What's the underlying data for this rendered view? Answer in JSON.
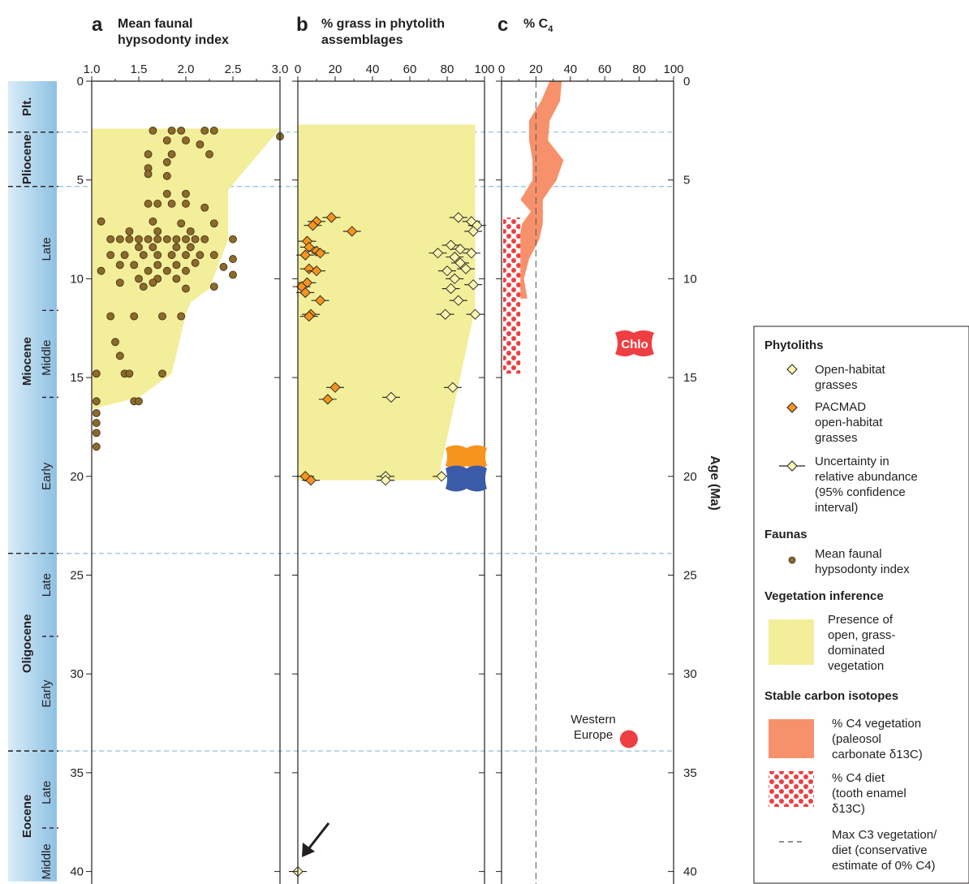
{
  "panels": [
    {
      "letter": "a",
      "title_line1": "Mean faunal",
      "title_line2": "hypsodonty index",
      "xticks": [
        "1.0",
        "1.5",
        "2.0",
        "2.5",
        "3.0"
      ],
      "xmin": 1.0,
      "xmax": 3.0
    },
    {
      "letter": "b",
      "title_line1": "% grass in phytolith",
      "title_line2": "assemblages",
      "xticks": [
        "0",
        "20",
        "40",
        "60",
        "80",
        "100"
      ],
      "xmin": 0,
      "xmax": 100
    },
    {
      "letter": "c",
      "title_line1": "% C",
      "title_sub": "4",
      "xticks": [
        "0",
        "20",
        "40",
        "60",
        "80",
        "100"
      ],
      "xmin": 0,
      "xmax": 100
    }
  ],
  "y_axis": {
    "label": "Age (Ma)",
    "ticks": [
      "0",
      "5",
      "10",
      "15",
      "20",
      "25",
      "30",
      "35",
      "40"
    ],
    "min": 0,
    "max": 40.5
  },
  "epochs": [
    {
      "name": "Plt.",
      "from": 0,
      "to": 2.58
    },
    {
      "name": "Pliocene",
      "from": 2.58,
      "to": 5.33
    },
    {
      "name": "Miocene",
      "from": 5.33,
      "to": 23.03
    },
    {
      "name": "Oligocene",
      "from": 23.03,
      "to": 33.9
    },
    {
      "name": "Eocene",
      "from": 33.9,
      "to": 40.5
    }
  ],
  "subepochs": [
    {
      "name": "Late",
      "at": 8.5
    },
    {
      "name": "Middle",
      "at": 14.0
    },
    {
      "name": "Early",
      "at": 20.0
    },
    {
      "name": "Late",
      "at": 25.5
    },
    {
      "name": "Early",
      "at": 31.0
    },
    {
      "name": "Late",
      "at": 36.0
    },
    {
      "name": "Middle",
      "at": 39.5
    }
  ],
  "annotations": {
    "chlo": "Chlo",
    "western_europe_line1": "Western",
    "western_europe_line2": "Europe"
  },
  "legend": {
    "phytoliths_title": "Phytoliths",
    "open_habitat": [
      "Open-habitat",
      "grasses"
    ],
    "pacmad": [
      "PACMAD",
      "open-habitat",
      "grasses"
    ],
    "uncertainty": [
      "Uncertainty in",
      "relative abundance",
      "(95% confidence",
      "interval)"
    ],
    "faunas_title": "Faunas",
    "faunal": [
      "Mean faunal",
      "hypsodonty index"
    ],
    "vegetation_title": "Vegetation inference",
    "vegetation": [
      "Presence of",
      "open, grass-",
      "dominated",
      "vegetation"
    ],
    "isotopes_title": "Stable carbon isotopes",
    "c4_veg": [
      "% C4 vegetation",
      "(paleosol",
      "carbonate δ13C)"
    ],
    "c4_diet": [
      "% C4 diet",
      "(tooth enamel",
      "δ13C)"
    ],
    "max_c3": [
      "Max C3 vegetation/",
      "diet (conservative",
      "estimate of 0% C4)"
    ]
  },
  "colors": {
    "yellow": "#f2ee9a",
    "brown": "#8b6a2b",
    "orange": "#f7941d",
    "open_diamond": "#fbf7b0",
    "c4": "#f7916c",
    "red": "#ef3e42",
    "blue": "#3b5ba9",
    "boundary": "#8fbfe0",
    "strip_light": "#d9ecf8",
    "strip_dark": "#8ec1e3"
  },
  "chart_data": [
    {
      "type": "scatter",
      "title": "Mean faunal hypsodonty index",
      "ylabel": "Age (Ma)",
      "xlim": [
        1.0,
        3.0
      ],
      "ylim": [
        0,
        40
      ],
      "shaded_region": [
        [
          1.0,
          2.4
        ],
        [
          3.0,
          2.4
        ],
        [
          2.45,
          5.5
        ],
        [
          2.45,
          8.0
        ],
        [
          2.25,
          10.5
        ],
        [
          2.05,
          11.2
        ],
        [
          2.0,
          11.8
        ],
        [
          1.85,
          14.8
        ],
        [
          1.5,
          16.0
        ],
        [
          1.0,
          16.6
        ]
      ],
      "series": [
        {
          "name": "Mean faunal hypsodonty index",
          "points": [
            [
              1.65,
              2.5
            ],
            [
              1.85,
              2.5
            ],
            [
              1.95,
              2.5
            ],
            [
              2.2,
              2.5
            ],
            [
              2.3,
              2.5
            ],
            [
              3.0,
              2.8
            ],
            [
              1.8,
              3.0
            ],
            [
              2.0,
              3.0
            ],
            [
              2.15,
              3.2
            ],
            [
              1.6,
              3.7
            ],
            [
              1.85,
              3.7
            ],
            [
              2.25,
              3.7
            ],
            [
              1.8,
              4.1
            ],
            [
              1.6,
              4.4
            ],
            [
              1.8,
              4.8
            ],
            [
              1.6,
              4.7
            ],
            [
              1.8,
              5.7
            ],
            [
              2.0,
              5.7
            ],
            [
              1.7,
              6.2
            ],
            [
              1.85,
              6.2
            ],
            [
              2.0,
              6.2
            ],
            [
              1.6,
              6.2
            ],
            [
              2.2,
              6.4
            ],
            [
              1.1,
              7.1
            ],
            [
              1.65,
              7.1
            ],
            [
              1.95,
              7.2
            ],
            [
              2.3,
              7.2
            ],
            [
              2.05,
              7.6
            ],
            [
              1.7,
              7.6
            ],
            [
              1.4,
              7.6
            ],
            [
              1.2,
              8.0
            ],
            [
              1.3,
              8.0
            ],
            [
              1.4,
              8.0
            ],
            [
              1.5,
              8.0
            ],
            [
              1.6,
              8.0
            ],
            [
              1.7,
              8.0
            ],
            [
              1.8,
              8.0
            ],
            [
              1.9,
              8.0
            ],
            [
              2.0,
              8.0
            ],
            [
              2.1,
              8.0
            ],
            [
              2.2,
              8.0
            ],
            [
              2.5,
              8.0
            ],
            [
              1.5,
              8.4
            ],
            [
              1.65,
              8.4
            ],
            [
              1.9,
              8.4
            ],
            [
              2.05,
              8.4
            ],
            [
              1.2,
              8.8
            ],
            [
              1.35,
              8.8
            ],
            [
              1.55,
              8.8
            ],
            [
              1.7,
              8.8
            ],
            [
              1.85,
              8.8
            ],
            [
              2.0,
              8.8
            ],
            [
              2.15,
              8.8
            ],
            [
              2.3,
              8.8
            ],
            [
              2.5,
              9.0
            ],
            [
              1.3,
              9.3
            ],
            [
              1.45,
              9.3
            ],
            [
              1.7,
              9.3
            ],
            [
              1.9,
              9.3
            ],
            [
              2.1,
              9.2
            ],
            [
              2.4,
              9.4
            ],
            [
              1.1,
              9.6
            ],
            [
              1.6,
              9.6
            ],
            [
              1.8,
              9.6
            ],
            [
              2.0,
              9.6
            ],
            [
              1.5,
              10.0
            ],
            [
              1.7,
              10.0
            ],
            [
              1.9,
              10.0
            ],
            [
              2.5,
              9.8
            ],
            [
              1.3,
              10.2
            ],
            [
              1.65,
              10.2
            ],
            [
              2.0,
              10.5
            ],
            [
              2.3,
              10.4
            ],
            [
              1.55,
              10.4
            ],
            [
              1.2,
              11.9
            ],
            [
              1.45,
              11.9
            ],
            [
              1.75,
              11.9
            ],
            [
              1.95,
              11.9
            ],
            [
              1.25,
              13.2
            ],
            [
              1.3,
              13.9
            ],
            [
              1.35,
              14.8
            ],
            [
              1.4,
              14.8
            ],
            [
              1.75,
              14.8
            ],
            [
              1.05,
              14.8
            ],
            [
              1.05,
              16.2
            ],
            [
              1.45,
              16.2
            ],
            [
              1.5,
              16.2
            ],
            [
              1.05,
              16.8
            ],
            [
              1.05,
              17.3
            ],
            [
              1.05,
              17.8
            ],
            [
              1.05,
              18.5
            ]
          ]
        }
      ]
    },
    {
      "type": "scatter",
      "title": "% grass in phytolith assemblages",
      "xlim": [
        0,
        100
      ],
      "ylim": [
        0,
        40
      ],
      "shaded_region": [
        [
          0,
          2.2
        ],
        [
          95,
          2.2
        ],
        [
          95,
          11.5
        ],
        [
          75,
          20.2
        ],
        [
          0,
          20.2
        ]
      ],
      "series": [
        {
          "name": "Open-habitat grasses",
          "points": [
            [
              86,
              6.9
            ],
            [
              93,
              7.1
            ],
            [
              96,
              7.3
            ],
            [
              94,
              7.6
            ],
            [
              82,
              8.3
            ],
            [
              87,
              8.5
            ],
            [
              93,
              8.7
            ],
            [
              75,
              8.7
            ],
            [
              84,
              8.9
            ],
            [
              87,
              9.2
            ],
            [
              90,
              9.5
            ],
            [
              80,
              9.6
            ],
            [
              84,
              10.0
            ],
            [
              94,
              10.3
            ],
            [
              82,
              10.5
            ],
            [
              86,
              11.1
            ],
            [
              79,
              11.8
            ],
            [
              95,
              11.8
            ],
            [
              83,
              15.5
            ],
            [
              50,
              16.0
            ],
            [
              77,
              20.0
            ],
            [
              47,
              20.0
            ],
            [
              47,
              20.2
            ],
            [
              0,
              40.0
            ]
          ]
        },
        {
          "name": "PACMAD open-habitat grasses",
          "points": [
            [
              18,
              6.9
            ],
            [
              10,
              7.1
            ],
            [
              8,
              7.3
            ],
            [
              29,
              7.6
            ],
            [
              5,
              8.1
            ],
            [
              6,
              8.4
            ],
            [
              10,
              8.6
            ],
            [
              12,
              8.7
            ],
            [
              4,
              8.8
            ],
            [
              6,
              9.5
            ],
            [
              10,
              9.6
            ],
            [
              5,
              10.2
            ],
            [
              2,
              10.4
            ],
            [
              4,
              10.7
            ],
            [
              12,
              11.1
            ],
            [
              7,
              11.8
            ],
            [
              6,
              11.9
            ],
            [
              20,
              15.5
            ],
            [
              16,
              16.1
            ],
            [
              4,
              20.0
            ],
            [
              7,
              20.2
            ]
          ]
        }
      ]
    },
    {
      "type": "area",
      "title": "% C4",
      "xlim": [
        0,
        100
      ],
      "ylim": [
        0,
        40
      ],
      "series": [
        {
          "name": "% C4 vegetation (paleosol carbonate δ13C)",
          "bands": [
            [
              0,
              28,
              35
            ],
            [
              1,
              23,
              34
            ],
            [
              2,
              16,
              28
            ],
            [
              3,
              16,
              27
            ],
            [
              4,
              18,
              36
            ],
            [
              5,
              18,
              32
            ],
            [
              6,
              11,
              24
            ],
            [
              6.6,
              17,
              24
            ],
            [
              7.2,
              12,
              24
            ],
            [
              8,
              10,
              22
            ],
            [
              9,
              4,
              16
            ],
            [
              10,
              3,
              13
            ],
            [
              11,
              8,
              15
            ]
          ]
        },
        {
          "name": "% C4 diet (tooth enamel δ13C)",
          "range": [
            0,
            10
          ],
          "from": 6.9,
          "to": 14.8
        },
        {
          "name": "Max C3 vegetation/diet (conservative estimate of 0% C4)",
          "x": 20
        }
      ],
      "points": [
        {
          "label": "Western Europe",
          "x": 74,
          "y": 33.3
        }
      ]
    }
  ]
}
